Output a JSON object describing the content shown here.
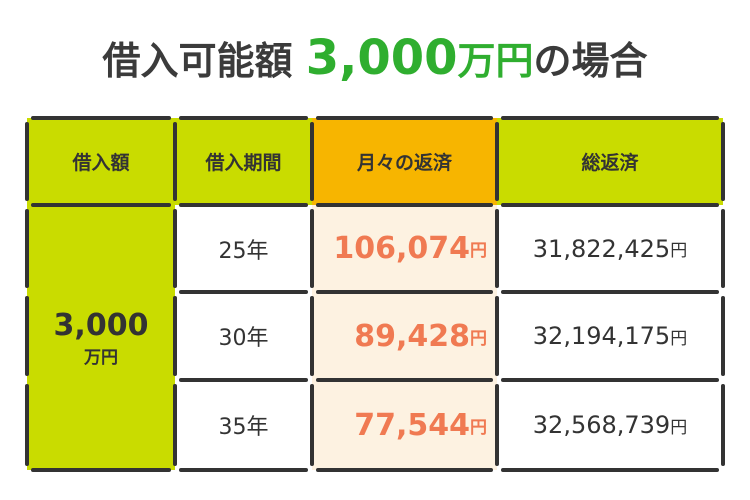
{
  "title": {
    "prefix": "借入可能額",
    "amount": "3,000",
    "unit": "万円",
    "suffix": "の場合"
  },
  "table": {
    "headers": [
      "借入額",
      "借入期間",
      "月々の返済",
      "総返済"
    ],
    "loan": {
      "amount": "3,000",
      "unit": "万円"
    },
    "rows": [
      {
        "term": "25年",
        "monthly": "106,074",
        "monthly_unit": "円",
        "total": "31,822,425",
        "total_unit": "円"
      },
      {
        "term": "30年",
        "monthly": "89,428",
        "monthly_unit": "円",
        "total": "32,194,175",
        "total_unit": "円"
      },
      {
        "term": "35年",
        "monthly": "77,544",
        "monthly_unit": "円",
        "total": "32,568,739",
        "total_unit": "円"
      }
    ]
  }
}
